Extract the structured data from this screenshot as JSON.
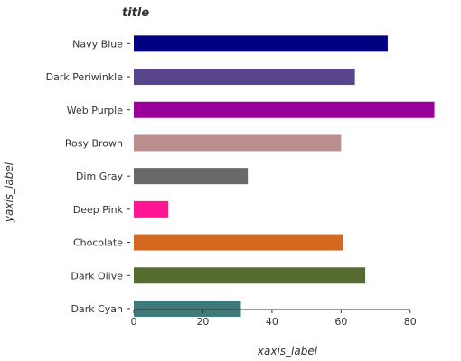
{
  "chart_data": {
    "type": "bar",
    "orientation": "horizontal",
    "title": "title",
    "xlabel": "xaxis_label",
    "ylabel": "yaxis_label",
    "xlim": [
      0,
      90
    ],
    "xticks": [
      0,
      20,
      40,
      60,
      80
    ],
    "xtick_labels": [
      "0",
      "20",
      "40",
      "60",
      "80"
    ],
    "grid": false,
    "categories": [
      "Dark Cyan",
      "Dark Olive",
      "Chocolate",
      "Deep Pink",
      "Dim Gray",
      "Rosy Brown",
      "Web Purple",
      "Dark Periwinkle",
      "Navy Blue"
    ],
    "values": [
      31,
      67,
      60.5,
      10,
      33,
      60,
      87,
      64,
      73.5
    ],
    "colors": [
      "#3c7a7c",
      "#556b2f",
      "#d2691e",
      "#ff1493",
      "#696969",
      "#bc8f8f",
      "#990099",
      "#58468a",
      "#000080"
    ]
  }
}
